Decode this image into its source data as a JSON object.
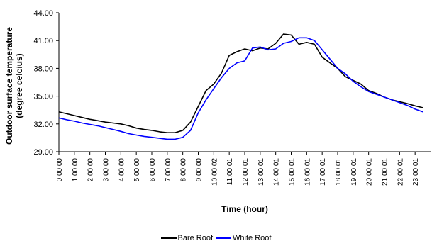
{
  "chart_data": {
    "type": "line",
    "xlabel": "Time (hour)",
    "ylabel_lines": [
      "Outdoor surface temperature",
      "(degree celcius)"
    ],
    "ylim": [
      29.0,
      44.0
    ],
    "yticks": [
      "29.00",
      "32.00",
      "35.00",
      "38.00",
      "41.00",
      "44.00"
    ],
    "grid": false,
    "legend_position": "bottom",
    "x_tick_labels": [
      "0:00:00",
      "1:00:00",
      "2:00:00",
      "3:00:00",
      "4:00:00",
      "5:00:00",
      "6:00:00",
      "7:00:00",
      "8:00:00",
      "9:00:00",
      "10:00:02",
      "11:00:01",
      "12:00:01",
      "13:00:01",
      "14:00:01",
      "15:00:01",
      "16:00:01",
      "17:00:01",
      "18:00:01",
      "19:00:01",
      "20:00:01",
      "21:00:01",
      "22:00:01",
      "23:00:01"
    ],
    "x_hours": [
      0,
      0.5,
      1,
      1.5,
      2,
      2.5,
      3,
      3.5,
      4,
      4.5,
      5,
      5.5,
      6,
      6.5,
      7,
      7.5,
      8,
      8.5,
      9,
      9.5,
      10,
      10.5,
      11,
      11.5,
      12,
      12.5,
      13,
      13.5,
      14,
      14.5,
      15,
      15.5,
      16,
      16.5,
      17,
      17.5,
      18,
      18.5,
      19,
      19.5,
      20,
      20.5,
      21,
      21.5,
      22,
      22.5,
      23,
      23.5
    ],
    "series": [
      {
        "name": "Bare Roof",
        "color": "#000000",
        "values": [
          33.3,
          33.1,
          32.9,
          32.7,
          32.5,
          32.35,
          32.2,
          32.1,
          32.0,
          31.8,
          31.55,
          31.4,
          31.3,
          31.15,
          31.05,
          31.05,
          31.3,
          32.2,
          33.9,
          35.6,
          36.3,
          37.5,
          39.4,
          39.8,
          40.1,
          39.9,
          40.2,
          40.1,
          40.7,
          41.7,
          41.6,
          40.6,
          40.8,
          40.6,
          39.2,
          38.6,
          38.0,
          37.1,
          36.7,
          36.3,
          35.6,
          35.3,
          34.9,
          34.6,
          34.4,
          34.2,
          33.95,
          33.75
        ]
      },
      {
        "name": "White Roof",
        "color": "#0000ff",
        "values": [
          32.65,
          32.45,
          32.3,
          32.1,
          31.95,
          31.8,
          31.6,
          31.4,
          31.2,
          30.95,
          30.8,
          30.65,
          30.55,
          30.45,
          30.35,
          30.35,
          30.55,
          31.3,
          33.2,
          34.6,
          35.8,
          37.0,
          38.0,
          38.6,
          38.8,
          40.2,
          40.3,
          40.0,
          40.1,
          40.7,
          40.9,
          41.3,
          41.3,
          41.0,
          40.0,
          39.0,
          38.0,
          37.4,
          36.6,
          36.0,
          35.5,
          35.2,
          34.9,
          34.6,
          34.3,
          34.0,
          33.6,
          33.3
        ]
      }
    ]
  }
}
